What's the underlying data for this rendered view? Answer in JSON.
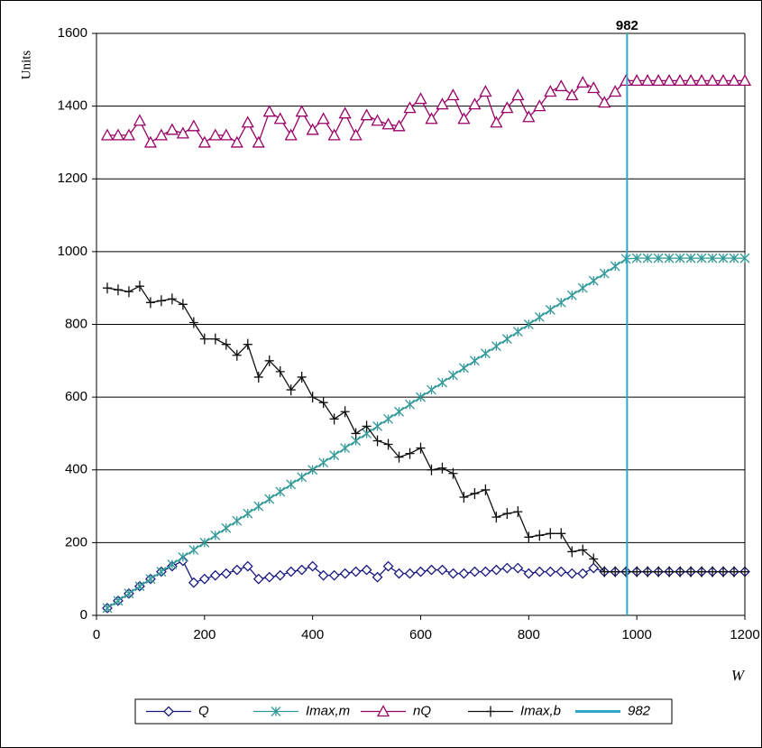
{
  "chart_data": {
    "type": "line",
    "ylabel": "Units",
    "xlabel": "W",
    "xlim": [
      0,
      1200
    ],
    "xticks": [
      0,
      200,
      400,
      600,
      800,
      1000,
      1200
    ],
    "ylim": [
      0,
      1600
    ],
    "yticks": [
      0,
      200,
      400,
      600,
      800,
      1000,
      1200,
      1400,
      1600
    ],
    "grid": true,
    "legend": "bottom",
    "x": [
      20,
      40,
      60,
      80,
      100,
      120,
      140,
      160,
      180,
      200,
      220,
      240,
      260,
      280,
      300,
      320,
      340,
      360,
      380,
      400,
      420,
      440,
      460,
      480,
      500,
      520,
      540,
      560,
      580,
      600,
      620,
      640,
      660,
      680,
      700,
      720,
      740,
      760,
      780,
      800,
      820,
      840,
      860,
      880,
      900,
      920,
      940,
      960,
      980,
      1000,
      1020,
      1040,
      1060,
      1080,
      1100,
      1120,
      1140,
      1160,
      1180,
      1200
    ],
    "series": [
      {
        "name": "Q",
        "color": "#1a1a80",
        "marker": "diamond",
        "values": [
          20,
          40,
          60,
          80,
          100,
          120,
          135,
          150,
          90,
          100,
          110,
          115,
          125,
          135,
          100,
          105,
          110,
          120,
          125,
          135,
          110,
          110,
          115,
          120,
          125,
          105,
          135,
          115,
          115,
          120,
          125,
          125,
          115,
          115,
          120,
          120,
          125,
          130,
          130,
          115,
          120,
          120,
          120,
          115,
          115,
          130,
          120,
          120,
          120,
          120,
          120,
          120,
          120,
          120,
          120,
          120,
          120,
          120,
          120,
          120
        ]
      },
      {
        "name": "Imax,m",
        "color": "#339999",
        "marker": "asterisk",
        "values": [
          20,
          40,
          60,
          80,
          100,
          120,
          140,
          160,
          180,
          200,
          220,
          240,
          260,
          280,
          300,
          320,
          340,
          360,
          380,
          400,
          420,
          440,
          460,
          480,
          500,
          520,
          540,
          560,
          580,
          600,
          620,
          640,
          660,
          680,
          700,
          720,
          740,
          760,
          780,
          800,
          820,
          840,
          860,
          880,
          900,
          920,
          940,
          960,
          980,
          982,
          982,
          982,
          982,
          982,
          982,
          982,
          982,
          982,
          982,
          982
        ]
      },
      {
        "name": "nQ",
        "color": "#990066",
        "marker": "triangle",
        "values": [
          1320,
          1320,
          1320,
          1360,
          1300,
          1320,
          1335,
          1325,
          1345,
          1300,
          1320,
          1320,
          1300,
          1355,
          1300,
          1385,
          1365,
          1320,
          1385,
          1335,
          1365,
          1320,
          1380,
          1320,
          1375,
          1360,
          1350,
          1345,
          1395,
          1420,
          1365,
          1405,
          1430,
          1365,
          1405,
          1440,
          1355,
          1395,
          1430,
          1370,
          1400,
          1440,
          1455,
          1430,
          1465,
          1450,
          1410,
          1440,
          1470,
          1470,
          1470,
          1470,
          1470,
          1470,
          1470,
          1470,
          1470,
          1470,
          1470,
          1470
        ]
      },
      {
        "name": "Imax,b",
        "color": "#111111",
        "marker": "plus",
        "values": [
          900,
          895,
          890,
          905,
          860,
          865,
          870,
          855,
          805,
          760,
          760,
          745,
          715,
          745,
          655,
          700,
          670,
          620,
          655,
          600,
          585,
          540,
          560,
          500,
          520,
          480,
          470,
          435,
          445,
          460,
          400,
          405,
          390,
          325,
          335,
          345,
          270,
          280,
          285,
          215,
          220,
          225,
          225,
          175,
          180,
          155,
          120,
          120,
          120,
          120,
          120,
          120,
          120,
          120,
          120,
          120,
          120,
          120,
          120,
          120
        ]
      },
      {
        "name": "982",
        "color": "#2fa8c8",
        "marker": "none",
        "x": [
          982,
          982
        ],
        "values": [
          0,
          1600
        ]
      }
    ]
  }
}
